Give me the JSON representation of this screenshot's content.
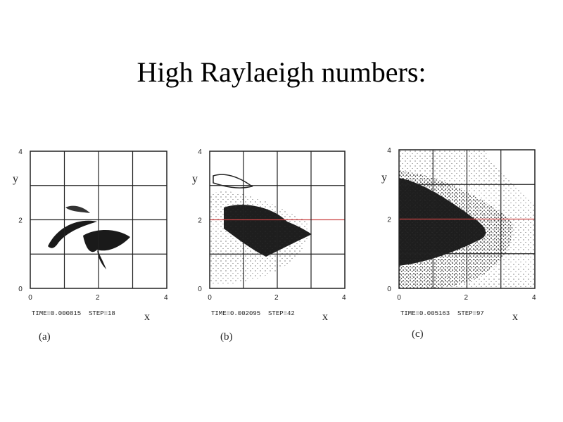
{
  "title": "High Raylaeigh numbers:",
  "panels": [
    {
      "label": "(a)",
      "caption": "TIME=0.000815  STEP=18",
      "x_label": "x",
      "y_label": "y",
      "xticks": [
        "0",
        "2",
        "4"
      ],
      "yticks": [
        "0",
        "2",
        "4"
      ]
    },
    {
      "label": "(b)",
      "caption": "TIME=0.002095  STEP=42",
      "x_label": "x",
      "y_label": "y",
      "xticks": [
        "0",
        "2",
        "4"
      ],
      "yticks": [
        "0",
        "2",
        "4"
      ]
    },
    {
      "label": "(c)",
      "caption": "TIME=0.005163  STEP=97",
      "x_label": "x",
      "y_label": "y",
      "xticks": [
        "0",
        "2",
        "4"
      ],
      "yticks": [
        "0",
        "2",
        "4"
      ]
    }
  ]
}
